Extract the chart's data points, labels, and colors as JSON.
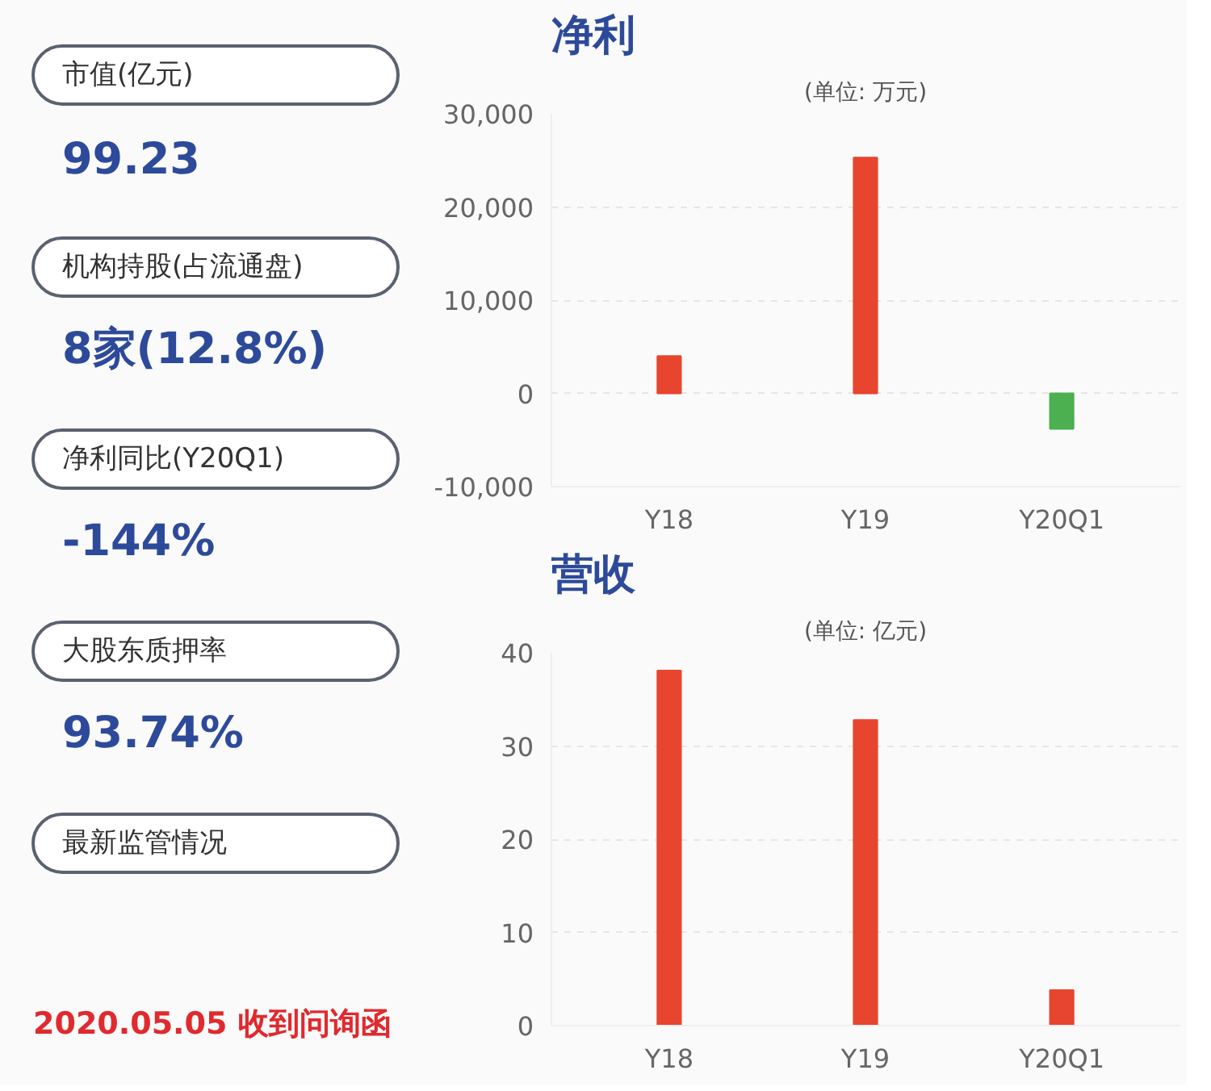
{
  "chart_data": [
    {
      "type": "other",
      "categories": [
        "市值(亿元)",
        "机构持股(占流通盘)",
        "净利同比(Y20Q1)",
        "大股东质押率",
        "最新监管情况"
      ],
      "value_labels": [
        "99.23",
        "8家(12.8%)",
        "-144%",
        "93.74%",
        null
      ],
      "annotations": [
        "2020.05.05 收到问询函"
      ]
    },
    {
      "type": "bar",
      "title": "净利",
      "subtitle": "(单位: 万元)",
      "categories": [
        "Y18",
        "Y19",
        "Y20Q1"
      ],
      "values": [
        4000,
        25300,
        -3800
      ],
      "colors": [
        "#e8452f",
        "#e8452f",
        "#4caf50"
      ],
      "ylim": [
        -10000,
        30000
      ],
      "yticks": [
        {
          "value": -10000,
          "label": "-10,000"
        },
        0,
        {
          "value": 10000,
          "label": "10,000"
        },
        {
          "value": 20000,
          "label": "20,000"
        },
        {
          "value": 30000,
          "label": "30,000"
        }
      ],
      "grid": "y"
    },
    {
      "type": "bar",
      "title": "营收",
      "subtitle": "(单位: 亿元)",
      "categories": [
        "Y18",
        "Y19",
        "Y20Q1"
      ],
      "values": [
        38.1,
        32.8,
        3.8
      ],
      "colors": [
        "#e8452f",
        "#e8452f",
        "#e8452f"
      ],
      "ylim": [
        0,
        40
      ],
      "yticks": [
        0,
        10,
        20,
        30,
        40
      ],
      "grid": "y"
    }
  ]
}
